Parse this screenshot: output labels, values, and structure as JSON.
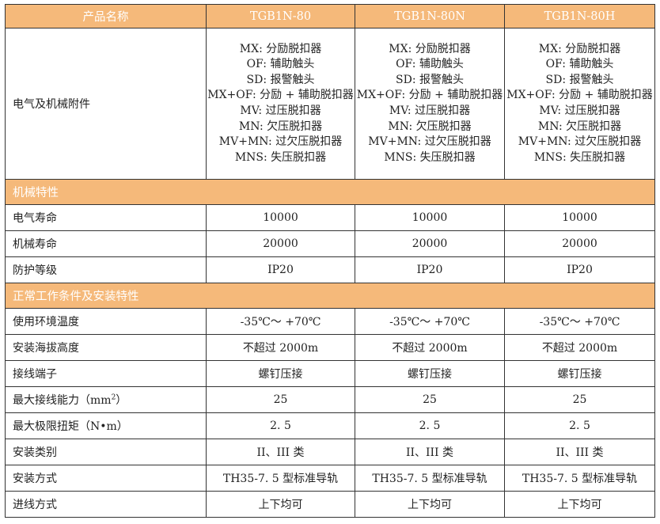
{
  "colors": {
    "section_bg": "#F5B97A",
    "header_text": "#ffffff",
    "border": "#333333"
  },
  "header": [
    "产品名称",
    "TGB1N-80",
    "TGB1N-80N",
    "TGB1N-80H"
  ],
  "accessories": {
    "label": "电气及机械附件",
    "lines": [
      "MX: 分励脱扣器",
      "OF: 辅助触头",
      "SD: 报警触头",
      "MX+OF: 分励 + 辅助脱扣器",
      "MV: 过压脱扣器",
      "MN: 欠压脱扣器",
      "MV+MN: 过欠压脱扣器",
      "MNS: 失压脱扣器"
    ]
  },
  "sections": [
    {
      "title": "机械特性",
      "rows": [
        {
          "label": "电气寿命",
          "values": [
            "10000",
            "10000",
            "10000"
          ]
        },
        {
          "label": "机械寿命",
          "values": [
            "20000",
            "20000",
            "20000"
          ]
        },
        {
          "label": "防护等级",
          "values": [
            "IP20",
            "IP20",
            "IP20"
          ]
        }
      ]
    },
    {
      "title": "正常工作条件及安装特性",
      "rows": [
        {
          "label": "使用环境温度",
          "values": [
            "-35℃～ +70℃",
            "-35℃～ +70℃",
            "-35℃～ +70℃"
          ]
        },
        {
          "label": "安装海拔高度",
          "values": [
            "不超过 2000m",
            "不超过 2000m",
            "不超过 2000m"
          ]
        },
        {
          "label": "接线端子",
          "values": [
            "螺钉压接",
            "螺钉压接",
            "螺钉压接"
          ]
        },
        {
          "label": "最大接线能力（mm²）",
          "values": [
            "25",
            "25",
            "25"
          ]
        },
        {
          "label": "最大极限扭矩（N•m）",
          "values": [
            "2. 5",
            "2. 5",
            "2. 5"
          ]
        },
        {
          "label": "安装类别",
          "values": [
            "II、III 类",
            "II、III 类",
            "II、III 类"
          ]
        },
        {
          "label": "安装方式",
          "values": [
            "TH35-7. 5 型标准导轨",
            "TH35-7. 5 型标准导轨",
            "TH35-7. 5 型标准导轨"
          ]
        },
        {
          "label": "进线方式",
          "values": [
            "上下均可",
            "上下均可",
            "上下均可"
          ]
        }
      ]
    }
  ]
}
